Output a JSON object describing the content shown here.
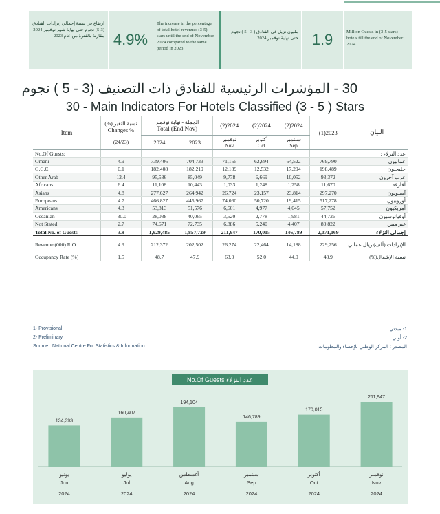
{
  "kpis": [
    {
      "value": "4.9%",
      "en": "The increase in the percentage of total hotel revenues (3-5) stars until the end of November 2024 compared to the same period in 2023.",
      "ar": "ارتفاع في نسبة إجمالي إيرادات الفنادق (3-5) نجوم حتى نهاية شهر نوفمبر 2024 مقارنة بالفترة من عام 2023"
    },
    {
      "value": "1.9",
      "en": "Million Guests in (3-5 stars) hotels till the end of November 2024.",
      "ar": "مليون نزيل في الفنادق ( 3 - 5 ) نجوم حتى نهاية نوفمبر 2024."
    }
  ],
  "title_ar": "30 - المؤشرات الرئيسية للفنادق ذات التصنيف (3 - 5 ) نجوم",
  "title_en": "30 - Main Indicators  For Hotels Classified (3 - 5 ) Stars",
  "table": {
    "h_item": "Item",
    "h_change_ar": "نسبة التغير (%)",
    "h_change_en": "Changes %",
    "h_change_period": "(24/23)",
    "h_total_ar": "الجملة - نهاية نوفمبر",
    "h_total_en": "Total (End Nov)",
    "h_2024": "2024",
    "h_2023": "2023",
    "h_m1_year": "(2)2024",
    "h_m2_year": "(2)2024",
    "h_m3_year": "(2)2024",
    "h_m1_ar": "نوفمبر",
    "h_m1_en": "Nov",
    "h_m2_ar": "أكتوبر",
    "h_m2_en": "Oct",
    "h_m3_ar": "سبتمبر",
    "h_m3_en": "Sep",
    "h_prev": "(1)2023",
    "h_arab": "البيان",
    "section_en": "No.Of Guests:",
    "section_ar": "عدد النزلاء :",
    "rows": [
      {
        "en": "Omani",
        "chg": "4.9",
        "t24": "739,406",
        "t23": "704,733",
        "nov": "71,155",
        "oct": "62,694",
        "sep": "64,522",
        "y23": "769,790",
        "ar": "عمانيون"
      },
      {
        "en": "G.C.C.",
        "chg": "0.1",
        "t24": "182,408",
        "t23": "182,219",
        "nov": "12,189",
        "oct": "12,532",
        "sep": "17,294",
        "y23": "198,489",
        "ar": "خليجيون"
      },
      {
        "en": "Other Arab",
        "chg": "12.4",
        "t24": "95,586",
        "t23": "85,049",
        "nov": "9,778",
        "oct": "6,669",
        "sep": "10,052",
        "y23": "93,372",
        "ar": "عرب آخرون"
      },
      {
        "en": "Africans",
        "chg": "6.4",
        "t24": "11,108",
        "t23": "10,443",
        "nov": "1,033",
        "oct": "1,248",
        "sep": "1,258",
        "y23": "11,670",
        "ar": "أفارقة"
      },
      {
        "en": "Asians",
        "chg": "4.8",
        "t24": "277,627",
        "t23": "264,942",
        "nov": "26,724",
        "oct": "23,157",
        "sep": "23,814",
        "y23": "297,270",
        "ar": "آسيويون"
      },
      {
        "en": "Europeans",
        "chg": "4.7",
        "t24": "466,827",
        "t23": "445,967",
        "nov": "74,060",
        "oct": "50,720",
        "sep": "19,415",
        "y23": "517,278",
        "ar": "أوروبيون"
      },
      {
        "en": "Americans",
        "chg": "4.3",
        "t24": "53,813",
        "t23": "51,576",
        "nov": "6,601",
        "oct": "4,977",
        "sep": "4,045",
        "y23": "57,752",
        "ar": "أمريكيون"
      },
      {
        "en": "Oceanian",
        "chg": "-30.0",
        "t24": "28,038",
        "t23": "40,065",
        "nov": "3,520",
        "oct": "2,778",
        "sep": "1,981",
        "y23": "44,726",
        "ar": "أوقيانوسيون"
      },
      {
        "en": "Not Stated",
        "chg": "2.7",
        "t24": "74,671",
        "t23": "72,735",
        "nov": "6,886",
        "oct": "5,240",
        "sep": "4,407",
        "y23": "80,822",
        "ar": "غير مبين"
      }
    ],
    "total": {
      "en": "Total No. of Guests",
      "chg": "3.9",
      "t24": "1,929,485",
      "t23": "1,857,729",
      "nov": "211,947",
      "oct": "170,015",
      "sep": "146,789",
      "y23": "2,071,169",
      "ar": "إجمالي النزلاء"
    },
    "revenue": {
      "en": "Revenue (000) R.O.",
      "chg": "4.9",
      "t24": "212,372",
      "t23": "202,502",
      "nov": "26,274",
      "oct": "22,464",
      "sep": "14,188",
      "y23": "229,256",
      "ar": "الإيرادات (ألف) ريال عماني"
    },
    "occupancy": {
      "en": "Occupancy Rate (%)",
      "chg": "1.5",
      "t24": "48.7",
      "t23": "47.9",
      "nov": "63.0",
      "oct": "52.0",
      "sep": "44.0",
      "y23": "48.9",
      "ar": "نسبة الإشغال(%)"
    }
  },
  "notes": {
    "n1_en": "1- Provisional",
    "n2_en": "2- Preliminary",
    "src_en": "Source : National Centre For Statistics & Information",
    "n1_ar": "1- مبدئي",
    "n2_ar": "2- أولي",
    "src_ar": "المصدر : المركز الوطني للإحصاء والمعلومات"
  },
  "chart_data": {
    "type": "bar",
    "title": "No.Of Guests عدد النزلاء",
    "categories": [
      "Jun",
      "Jul",
      "Aug",
      "Sep",
      "Oct",
      "Nov"
    ],
    "categories_ar": [
      "يونيو",
      "يوليو",
      "أغسطس",
      "سبتمبر",
      "أكتوبر",
      "نوفمبر"
    ],
    "year": "2024",
    "values": [
      134393,
      160407,
      194104,
      146789,
      170015,
      211947
    ],
    "value_labels": [
      "134,393",
      "160,407",
      "194,104",
      "146,789",
      "170,015",
      "211,947"
    ],
    "color": "#8ec3a9"
  }
}
